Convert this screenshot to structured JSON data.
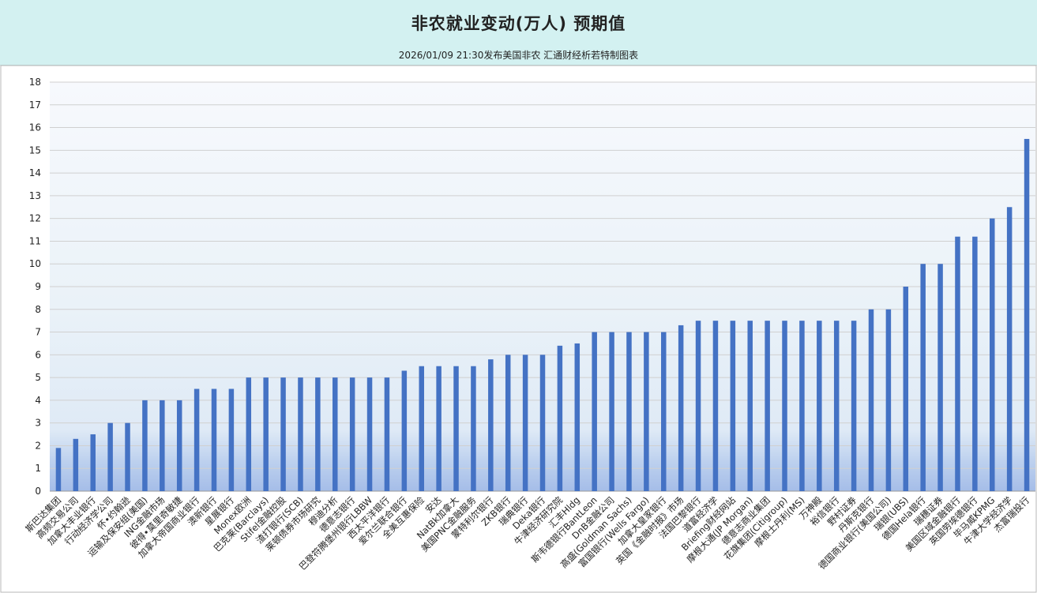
{
  "header": {
    "title": "非农就业变动(万人)  预期值",
    "subtitle": "2026/01/09 21:30发布美国非农 汇通财经析若特制图表"
  },
  "colors": {
    "bar": "#4472c4",
    "header_bg": "#d3f1f1",
    "grid": "#d0d0d0"
  },
  "chart_data": {
    "type": "bar",
    "title": "非农就业变动(万人)  预期值",
    "subtitle": "2026/01/09 21:30发布美国非农 汇通财经析若特制图表",
    "ylim": [
      0,
      18
    ],
    "yticks": [
      0,
      1,
      2,
      3,
      4,
      5,
      6,
      7,
      8,
      9,
      10,
      11,
      12,
      13,
      14,
      15,
      16,
      17,
      18
    ],
    "grid": true,
    "categories": [
      "斯巴达集团",
      "高频交易公司",
      "加拿大丰业银行",
      "行动经济学公司",
      "怀•约翰逊",
      "运输及保安组(美国)",
      "ING金融市场",
      "彼得•莫里奇敏捷",
      "加拿大帝国商业银行",
      "澳新银行",
      "星展银行",
      "Monex欧洲",
      "巴克莱(Barclays)",
      "Stifel金融控股",
      "渣打银行(SCB)",
      "莱顿债券市场研究",
      "穆迪分析",
      "德意志银行",
      "巴登符腾堡州银行LBBW",
      "西太平洋银行",
      "爱尔兰联合银行",
      "全美互惠保险",
      "安达",
      "NatBk加拿大",
      "美国PNC金融服务",
      "蒙特利尔银行",
      "ZKB银行",
      "瑞典银行",
      "Deka银行",
      "牛津经济研究院",
      "汇丰Hldg",
      "斯韦德银行BantLeon",
      "DnB金融公司",
      "高盛(Goldman Sachs)",
      "富国银行(Wells Fargo)",
      "加拿大皇家银行",
      "英国《金融时报》市场",
      "法国巴黎银行",
      "道富经济学",
      "Briefing财经网站",
      "摩根大通(JP Morgan)",
      "德意志商业集团",
      "花旗集团(Citigroup)",
      "摩根士丹利(MS)",
      "万神殿",
      "裕信银行",
      "野村证券",
      "丹斯克银行",
      "德国商业银行(美国公司)",
      "瑞银(UBS)",
      "德国Hela银行",
      "瑞穗证券",
      "美国区域金融银行",
      "英国劳埃德银行",
      "毕马威KPMG",
      "牛津大学经济学",
      "杰富瑞投行"
    ],
    "values": [
      1.9,
      2.3,
      2.5,
      3,
      3,
      4,
      4,
      4,
      4.5,
      4.5,
      4.5,
      5,
      5,
      5,
      5,
      5,
      5,
      5,
      5,
      5,
      5.3,
      5.5,
      5.5,
      5.5,
      5.5,
      5.8,
      6,
      6,
      6,
      6.4,
      6.5,
      7,
      7,
      7,
      7,
      7,
      7.3,
      7.5,
      7.5,
      7.5,
      7.5,
      7.5,
      7.5,
      7.5,
      7.5,
      7.5,
      7.5,
      8,
      8,
      9,
      10,
      10,
      11.2,
      11.2,
      12,
      12.5,
      15.5
    ]
  }
}
